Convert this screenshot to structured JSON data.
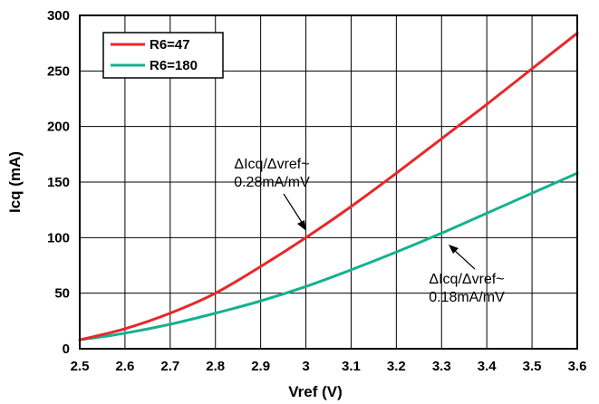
{
  "chart_data": {
    "type": "line",
    "xlabel": "Vref (V)",
    "ylabel": "Icq (mA)",
    "xlim": [
      2.5,
      3.6
    ],
    "ylim": [
      0,
      300
    ],
    "xticks": [
      "2.5",
      "2.6",
      "2.7",
      "2.8",
      "2.9",
      "3",
      "3.1",
      "3.2",
      "3.3",
      "3.4",
      "3.5",
      "3.6"
    ],
    "yticks": [
      "0",
      "50",
      "100",
      "150",
      "200",
      "250",
      "300"
    ],
    "grid": true,
    "legend_position": "top-left",
    "series": [
      {
        "name": "R6=47",
        "color": "#e8272a",
        "x": [
          2.5,
          2.6,
          2.7,
          2.8,
          2.9,
          3.0,
          3.1,
          3.2,
          3.3,
          3.4,
          3.5,
          3.6
        ],
        "y": [
          8,
          18,
          32,
          50,
          74,
          100,
          128,
          158,
          189,
          220,
          252,
          284
        ]
      },
      {
        "name": "R6=180",
        "color": "#16b08f",
        "x": [
          2.5,
          2.6,
          2.7,
          2.8,
          2.9,
          3.0,
          3.1,
          3.2,
          3.3,
          3.4,
          3.5,
          3.6
        ],
        "y": [
          8,
          14,
          22,
          32,
          43,
          56,
          71,
          87,
          104,
          122,
          140,
          158
        ]
      }
    ],
    "annotations": [
      {
        "line1": "ΔIcq/Δvref~",
        "line2": "0.28mA/mV",
        "points_to_series": "R6=47",
        "at_x": 3.0
      },
      {
        "line1": "ΔIcq/Δvref~",
        "line2": "0.18mA/mV",
        "points_to_series": "R6=180",
        "at_x": 3.3
      }
    ]
  }
}
